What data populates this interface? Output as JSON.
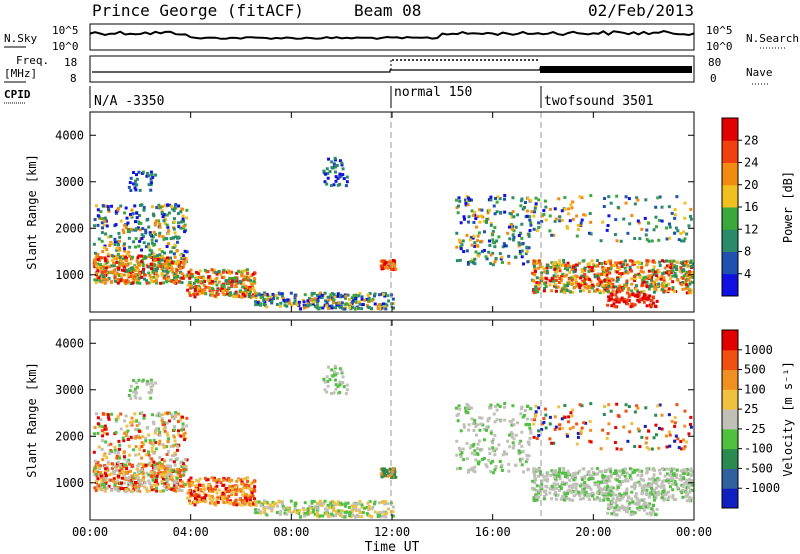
{
  "header": {
    "site": "Prince George (fitACF)",
    "beam": "Beam 08",
    "date": "02/Feb/2013"
  },
  "sky_panel": {
    "left_label": "N.Sky",
    "right_label": "N.Search",
    "left_ticks": [
      "10^5",
      "10^0"
    ],
    "right_ticks": [
      "10^5",
      "10^0"
    ]
  },
  "freq_panel": {
    "left_label_1": "Freq.",
    "left_label_2": "[MHz]",
    "right_label": "Nave",
    "left_ticks": [
      "18",
      "8"
    ],
    "right_ticks": [
      "80",
      "0"
    ]
  },
  "cpid": {
    "label": "CPID",
    "segments": [
      {
        "label": "N/A -3350",
        "start_h": 0
      },
      {
        "label": "normal 150",
        "start_h": 12
      },
      {
        "label": "twofsound 3501",
        "start_h": 18
      }
    ]
  },
  "power_colorbar": {
    "label": "Power [dB]",
    "ticks": [
      "28",
      "24",
      "20",
      "16",
      "12",
      "8",
      "4"
    ],
    "colors": [
      "#1010e0",
      "#2050b0",
      "#2a8a6a",
      "#3aa83a",
      "#f0c020",
      "#f08a10",
      "#f04010",
      "#e00000"
    ]
  },
  "velocity_colorbar": {
    "label": "Velocity [m s⁻¹]",
    "ticks": [
      "1000",
      "500",
      "100",
      "25",
      "-25",
      "-100",
      "-500",
      "-1000"
    ],
    "colors": [
      "#1020c0",
      "#3060a0",
      "#2a8a50",
      "#50c040",
      "#c0c0b8",
      "#f0c040",
      "#f09020",
      "#f05010",
      "#e00000"
    ]
  },
  "chart_data": [
    {
      "type": "heatmap",
      "name_note": "power",
      "ylabel": "Slant Range [km]",
      "ylim": [
        200,
        4500
      ],
      "xlim_h": [
        0,
        24
      ],
      "x_ticks": [
        "00:00",
        "04:00",
        "08:00",
        "12:00",
        "16:00",
        "20:00",
        "00:00"
      ],
      "y_ticks": [
        1000,
        2000,
        3000,
        4000
      ]
    },
    {
      "type": "heatmap",
      "name_note": "velocity",
      "ylabel": "Slant Range [km]",
      "xlabel": "Time UT",
      "ylim": [
        200,
        4500
      ],
      "xlim_h": [
        0,
        24
      ],
      "x_ticks": [
        "00:00",
        "04:00",
        "08:00",
        "12:00",
        "16:00",
        "20:00",
        "00:00"
      ],
      "y_ticks": [
        1000,
        2000,
        3000,
        4000
      ]
    }
  ]
}
